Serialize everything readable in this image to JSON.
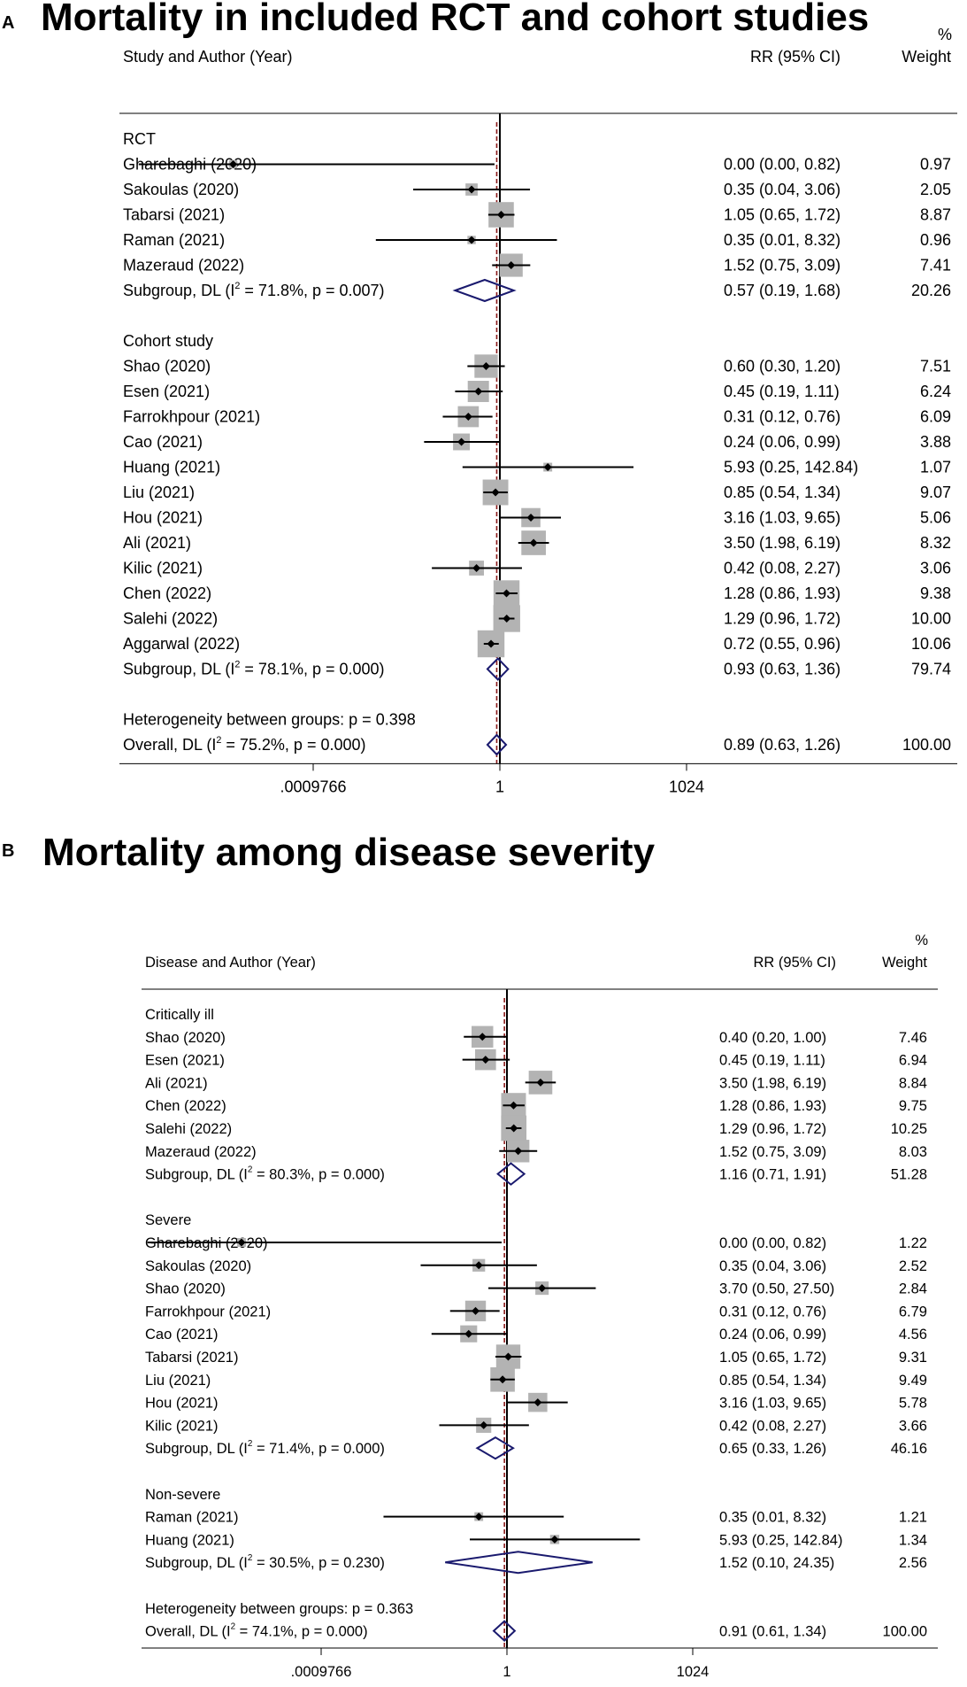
{
  "figure": {
    "panel_a_letter": "A",
    "panel_a_title": "Mortality in included RCT and cohort studies",
    "panel_b_letter": "B",
    "panel_b_title": "Mortality among disease severity"
  },
  "colors": {
    "box": "#b3b3b3",
    "diamond": "#1a1a6e",
    "ref_line": "#8b1a1a",
    "text": "#000000"
  },
  "chart_data": [
    {
      "type": "forest",
      "panel": "A",
      "title": "Mortality in included RCT and cohort studies",
      "header": {
        "study": "Study and Author (Year)",
        "rr": "RR (95% CI)",
        "weight_pct": "%",
        "weight": "Weight"
      },
      "x_scale": "log2",
      "x_ticks": [
        {
          "value": 0.0009765625,
          "label": ".0009766"
        },
        {
          "value": 1,
          "label": "1"
        },
        {
          "value": 1024,
          "label": "1024"
        }
      ],
      "xlim": [
        2e-07,
        5000000
      ],
      "overall_est": 0.89,
      "rows": [
        {
          "kind": "group",
          "label": "RCT"
        },
        {
          "kind": "study",
          "label": "Gharebaghi (2020)",
          "est": 5e-05,
          "lo": 1.5e-06,
          "hi": 0.82,
          "ci": "0.00 (0.00, 0.82)",
          "weight": "0.97"
        },
        {
          "kind": "study",
          "label": "Sakoulas (2020)",
          "est": 0.35,
          "lo": 0.04,
          "hi": 3.06,
          "ci": "0.35 (0.04, 3.06)",
          "weight": "2.05"
        },
        {
          "kind": "study",
          "label": "Tabarsi (2021)",
          "est": 1.05,
          "lo": 0.65,
          "hi": 1.72,
          "ci": "1.05 (0.65, 1.72)",
          "weight": "8.87"
        },
        {
          "kind": "study",
          "label": "Raman (2021)",
          "est": 0.35,
          "lo": 0.01,
          "hi": 8.32,
          "ci": "0.35 (0.01, 8.32)",
          "weight": "0.96"
        },
        {
          "kind": "study",
          "label": "Mazeraud (2022)",
          "est": 1.52,
          "lo": 0.75,
          "hi": 3.09,
          "ci": "1.52 (0.75, 3.09)",
          "weight": "7.41"
        },
        {
          "kind": "subtotal",
          "label_pre": "Subgroup, DL (I",
          "label_post": " = 71.8%, p = 0.007)",
          "est": 0.57,
          "lo": 0.19,
          "hi": 1.68,
          "ci": "0.57 (0.19, 1.68)",
          "weight": "20.26"
        },
        {
          "kind": "blank"
        },
        {
          "kind": "group",
          "label": "Cohort study"
        },
        {
          "kind": "study",
          "label": "Shao (2020)",
          "est": 0.6,
          "lo": 0.3,
          "hi": 1.2,
          "ci": "0.60 (0.30, 1.20)",
          "weight": "7.51"
        },
        {
          "kind": "study",
          "label": "Esen (2021)",
          "est": 0.45,
          "lo": 0.19,
          "hi": 1.11,
          "ci": "0.45 (0.19, 1.11)",
          "weight": "6.24"
        },
        {
          "kind": "study",
          "label": "Farrokhpour (2021)",
          "est": 0.31,
          "lo": 0.12,
          "hi": 0.76,
          "ci": "0.31 (0.12, 0.76)",
          "weight": "6.09"
        },
        {
          "kind": "study",
          "label": "Cao (2021)",
          "est": 0.24,
          "lo": 0.06,
          "hi": 0.99,
          "ci": "0.24 (0.06, 0.99)",
          "weight": "3.88"
        },
        {
          "kind": "study",
          "label": "Huang (2021)",
          "est": 5.93,
          "lo": 0.25,
          "hi": 142.84,
          "ci": "5.93 (0.25, 142.84)",
          "weight": "1.07"
        },
        {
          "kind": "study",
          "label": "Liu (2021)",
          "est": 0.85,
          "lo": 0.54,
          "hi": 1.34,
          "ci": "0.85 (0.54, 1.34)",
          "weight": "9.07"
        },
        {
          "kind": "study",
          "label": "Hou (2021)",
          "est": 3.16,
          "lo": 1.03,
          "hi": 9.65,
          "ci": "3.16 (1.03, 9.65)",
          "weight": "5.06"
        },
        {
          "kind": "study",
          "label": "Ali (2021)",
          "est": 3.5,
          "lo": 1.98,
          "hi": 6.19,
          "ci": "3.50 (1.98, 6.19)",
          "weight": "8.32"
        },
        {
          "kind": "study",
          "label": "Kilic (2021)",
          "est": 0.42,
          "lo": 0.08,
          "hi": 2.27,
          "ci": "0.42 (0.08, 2.27)",
          "weight": "3.06"
        },
        {
          "kind": "study",
          "label": "Chen (2022)",
          "est": 1.28,
          "lo": 0.86,
          "hi": 1.93,
          "ci": "1.28 (0.86, 1.93)",
          "weight": "9.38"
        },
        {
          "kind": "study",
          "label": "Salehi (2022)",
          "est": 1.29,
          "lo": 0.96,
          "hi": 1.72,
          "ci": "1.29 (0.96, 1.72)",
          "weight": "10.00"
        },
        {
          "kind": "study",
          "label": "Aggarwal (2022)",
          "est": 0.72,
          "lo": 0.55,
          "hi": 0.96,
          "ci": "0.72 (0.55, 0.96)",
          "weight": "10.06"
        },
        {
          "kind": "subtotal",
          "label_pre": "Subgroup, DL (I",
          "label_post": " = 78.1%, p = 0.000)",
          "est": 0.93,
          "lo": 0.63,
          "hi": 1.36,
          "ci": "0.93 (0.63, 1.36)",
          "weight": "79.74"
        },
        {
          "kind": "blank"
        },
        {
          "kind": "text",
          "label": "Heterogeneity between groups: p = 0.398"
        },
        {
          "kind": "overall",
          "label_pre": "Overall, DL (I",
          "label_post": " = 75.2%, p = 0.000)",
          "est": 0.89,
          "lo": 0.63,
          "hi": 1.26,
          "ci": "0.89 (0.63, 1.26)",
          "weight": "100.00"
        }
      ]
    },
    {
      "type": "forest",
      "panel": "B",
      "title": "Mortality among disease severity",
      "header": {
        "study": "Disease and Author (Year)",
        "rr": "RR (95% CI)",
        "weight_pct": "%",
        "weight": "Weight"
      },
      "x_scale": "log2",
      "x_ticks": [
        {
          "value": 0.0009765625,
          "label": ".0009766"
        },
        {
          "value": 1,
          "label": "1"
        },
        {
          "value": 1024,
          "label": "1024"
        }
      ],
      "xlim": [
        2e-07,
        5000000
      ],
      "overall_est": 0.91,
      "rows": [
        {
          "kind": "group",
          "label": "Critically ill"
        },
        {
          "kind": "study",
          "label": "Shao (2020)",
          "est": 0.4,
          "lo": 0.2,
          "hi": 1.0,
          "ci": "0.40 (0.20, 1.00)",
          "weight": "7.46"
        },
        {
          "kind": "study",
          "label": "Esen (2021)",
          "est": 0.45,
          "lo": 0.19,
          "hi": 1.11,
          "ci": "0.45 (0.19, 1.11)",
          "weight": "6.94"
        },
        {
          "kind": "study",
          "label": "Ali (2021)",
          "est": 3.5,
          "lo": 1.98,
          "hi": 6.19,
          "ci": "3.50 (1.98, 6.19)",
          "weight": "8.84"
        },
        {
          "kind": "study",
          "label": "Chen (2022)",
          "est": 1.28,
          "lo": 0.86,
          "hi": 1.93,
          "ci": "1.28 (0.86, 1.93)",
          "weight": "9.75"
        },
        {
          "kind": "study",
          "label": "Salehi (2022)",
          "est": 1.29,
          "lo": 0.96,
          "hi": 1.72,
          "ci": "1.29 (0.96, 1.72)",
          "weight": "10.25"
        },
        {
          "kind": "study",
          "label": "Mazeraud (2022)",
          "est": 1.52,
          "lo": 0.75,
          "hi": 3.09,
          "ci": "1.52 (0.75, 3.09)",
          "weight": "8.03"
        },
        {
          "kind": "subtotal",
          "label_pre": "Subgroup, DL (I",
          "label_post": " = 80.3%, p = 0.000)",
          "est": 1.16,
          "lo": 0.71,
          "hi": 1.91,
          "ci": "1.16 (0.71, 1.91)",
          "weight": "51.28"
        },
        {
          "kind": "blank"
        },
        {
          "kind": "group",
          "label": "Severe"
        },
        {
          "kind": "study",
          "label": "Gharebaghi (2020)",
          "est": 5e-05,
          "lo": 1.5e-06,
          "hi": 0.82,
          "ci": "0.00 (0.00, 0.82)",
          "weight": "1.22"
        },
        {
          "kind": "study",
          "label": "Sakoulas (2020)",
          "est": 0.35,
          "lo": 0.04,
          "hi": 3.06,
          "ci": "0.35 (0.04, 3.06)",
          "weight": "2.52"
        },
        {
          "kind": "study",
          "label": "Shao (2020)",
          "est": 3.7,
          "lo": 0.5,
          "hi": 27.5,
          "ci": "3.70 (0.50, 27.50)",
          "weight": "2.84"
        },
        {
          "kind": "study",
          "label": "Farrokhpour (2021)",
          "est": 0.31,
          "lo": 0.12,
          "hi": 0.76,
          "ci": "0.31 (0.12, 0.76)",
          "weight": "6.79"
        },
        {
          "kind": "study",
          "label": "Cao (2021)",
          "est": 0.24,
          "lo": 0.06,
          "hi": 0.99,
          "ci": "0.24 (0.06, 0.99)",
          "weight": "4.56"
        },
        {
          "kind": "study",
          "label": "Tabarsi (2021)",
          "est": 1.05,
          "lo": 0.65,
          "hi": 1.72,
          "ci": "1.05 (0.65, 1.72)",
          "weight": "9.31"
        },
        {
          "kind": "study",
          "label": "Liu (2021)",
          "est": 0.85,
          "lo": 0.54,
          "hi": 1.34,
          "ci": "0.85 (0.54, 1.34)",
          "weight": "9.49"
        },
        {
          "kind": "study",
          "label": "Hou (2021)",
          "est": 3.16,
          "lo": 1.03,
          "hi": 9.65,
          "ci": "3.16 (1.03, 9.65)",
          "weight": "5.78"
        },
        {
          "kind": "study",
          "label": "Kilic (2021)",
          "est": 0.42,
          "lo": 0.08,
          "hi": 2.27,
          "ci": "0.42 (0.08, 2.27)",
          "weight": "3.66"
        },
        {
          "kind": "subtotal",
          "label_pre": "Subgroup, DL (I",
          "label_post": " = 71.4%, p = 0.000)",
          "est": 0.65,
          "lo": 0.33,
          "hi": 1.26,
          "ci": "0.65 (0.33, 1.26)",
          "weight": "46.16"
        },
        {
          "kind": "blank"
        },
        {
          "kind": "group",
          "label": "Non-severe"
        },
        {
          "kind": "study",
          "label": "Raman (2021)",
          "est": 0.35,
          "lo": 0.01,
          "hi": 8.32,
          "ci": "0.35 (0.01, 8.32)",
          "weight": "1.21"
        },
        {
          "kind": "study",
          "label": "Huang (2021)",
          "est": 5.93,
          "lo": 0.25,
          "hi": 142.84,
          "ci": "5.93 (0.25, 142.84)",
          "weight": "1.34"
        },
        {
          "kind": "subtotal",
          "label_pre": "Subgroup, DL (I",
          "label_post": " = 30.5%, p = 0.230)",
          "est": 1.52,
          "lo": 0.1,
          "hi": 24.35,
          "ci": "1.52 (0.10, 24.35)",
          "weight": "2.56"
        },
        {
          "kind": "blank"
        },
        {
          "kind": "text",
          "label": "Heterogeneity between groups: p = 0.363"
        },
        {
          "kind": "overall",
          "label_pre": "Overall, DL (I",
          "label_post": " = 74.1%, p = 0.000)",
          "est": 0.91,
          "lo": 0.61,
          "hi": 1.34,
          "ci": "0.91 (0.61, 1.34)",
          "weight": "100.00"
        }
      ]
    }
  ]
}
